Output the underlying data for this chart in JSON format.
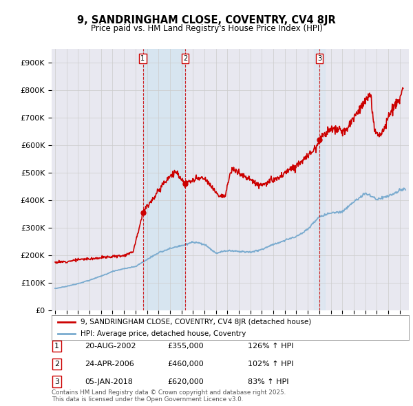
{
  "title": "9, SANDRINGHAM CLOSE, COVENTRY, CV4 8JR",
  "subtitle": "Price paid vs. HM Land Registry's House Price Index (HPI)",
  "background_color": "#ffffff",
  "grid_color": "#cccccc",
  "plot_bg_color": "#e8e8f0",
  "red_line_color": "#cc0000",
  "blue_line_color": "#7aabcf",
  "sale_marker_color": "#cc0000",
  "shade_color": "#d0e4f0",
  "sale_year_nums": [
    2002.64,
    2006.32,
    2018.01
  ],
  "sale_prices": [
    355000,
    460000,
    620000
  ],
  "sale_labels": [
    "1",
    "2",
    "3"
  ],
  "sale_info": [
    {
      "label": "1",
      "date": "20-AUG-2002",
      "price": "£355,000",
      "pct": "126% ↑ HPI"
    },
    {
      "label": "2",
      "date": "24-APR-2006",
      "price": "£460,000",
      "pct": "102% ↑ HPI"
    },
    {
      "label": "3",
      "date": "05-JAN-2018",
      "price": "£620,000",
      "pct": "83% ↑ HPI"
    }
  ],
  "legend_entries": [
    "9, SANDRINGHAM CLOSE, COVENTRY, CV4 8JR (detached house)",
    "HPI: Average price, detached house, Coventry"
  ],
  "footer": "Contains HM Land Registry data © Crown copyright and database right 2025.\nThis data is licensed under the Open Government Licence v3.0.",
  "ylim": [
    0,
    950000
  ],
  "yticks": [
    0,
    100000,
    200000,
    300000,
    400000,
    500000,
    600000,
    700000,
    800000,
    900000
  ],
  "ytick_labels": [
    "£0",
    "£100K",
    "£200K",
    "£300K",
    "£400K",
    "£500K",
    "£600K",
    "£700K",
    "£800K",
    "£900K"
  ],
  "xlim_start": 1994.7,
  "xlim_end": 2025.8
}
